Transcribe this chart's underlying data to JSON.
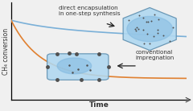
{
  "bg_color": "#f0f0f0",
  "plot_bg": "#f0f0f0",
  "xlabel": "Time",
  "ylabel": "CH₄ conversion",
  "blue_line_color": "#7ab0d8",
  "orange_line_color": "#e08030",
  "crystal_face_color_hex": "#b0d8f0",
  "crystal_face_color_deep": "#80b8e0",
  "crystal_edge_color": "#6090b0",
  "dot_color": "#505050",
  "arrow_color": "#222222",
  "text_color": "#333333",
  "text_direct": "direct encapsulation\nin one-step synthesis",
  "text_conv": "conventional\nimpregnation",
  "font_size_ylabel": 5.5,
  "font_size_xlabel": 6.5,
  "font_size_annot": 5.2
}
